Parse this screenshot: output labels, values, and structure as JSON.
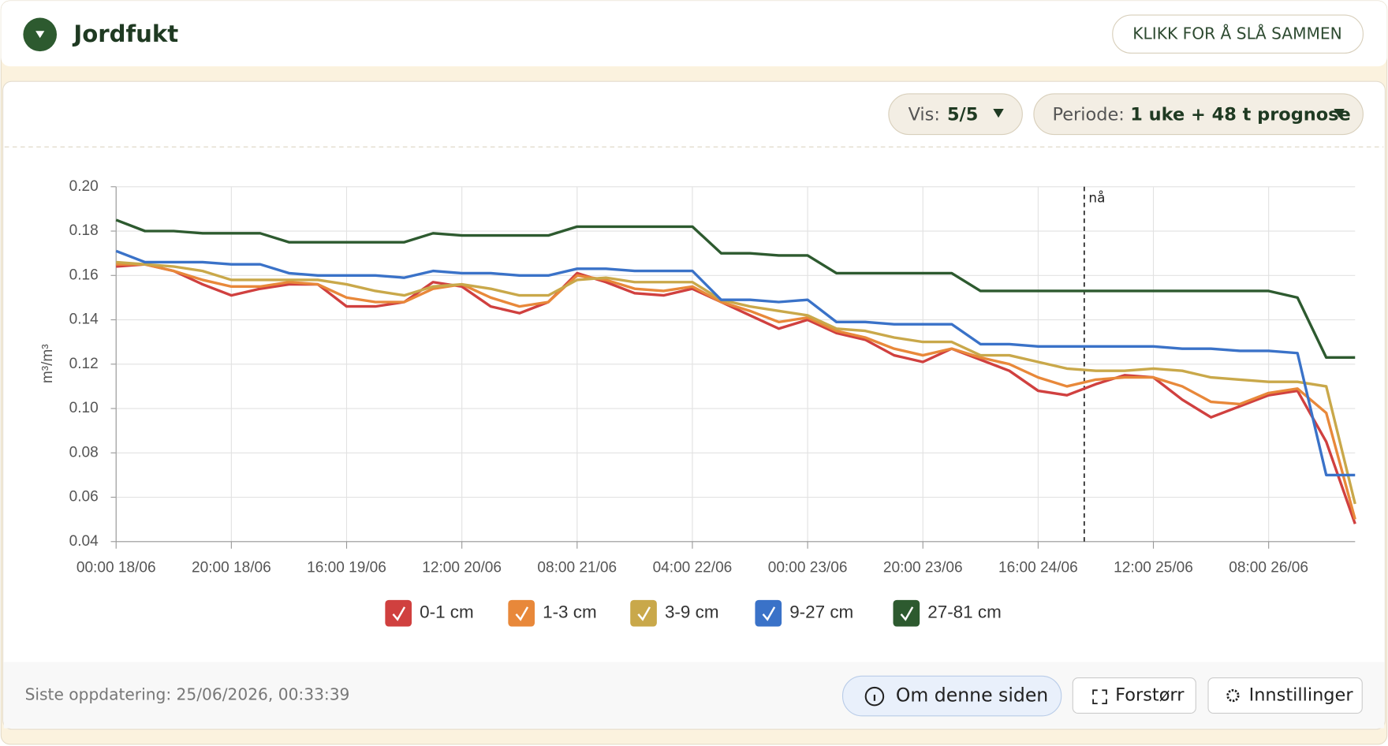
{
  "header": {
    "title": "Jordfukt",
    "collapse_button": "KLIKK FOR Å SLÅ SAMMEN"
  },
  "controls": {
    "show_label": "Vis:",
    "show_value": "5/5",
    "period_label": "Periode:",
    "period_value": "1 uke + 48 t prognose"
  },
  "chart_data": {
    "type": "line",
    "y_label": "m³/m³",
    "x": [
      "00:00 18/06",
      "05:00 18/06",
      "10:00 18/06",
      "15:00 18/06",
      "20:00 18/06",
      "01:00 19/06",
      "06:00 19/06",
      "11:00 19/06",
      "16:00 19/06",
      "21:00 19/06",
      "02:00 20/06",
      "07:00 20/06",
      "12:00 20/06",
      "17:00 20/06",
      "22:00 20/06",
      "03:00 21/06",
      "08:00 21/06",
      "13:00 21/06",
      "18:00 21/06",
      "23:00 21/06",
      "04:00 22/06",
      "09:00 22/06",
      "14:00 22/06",
      "19:00 22/06",
      "00:00 23/06",
      "05:00 23/06",
      "10:00 23/06",
      "15:00 23/06",
      "20:00 23/06",
      "01:00 24/06",
      "06:00 24/06",
      "11:00 24/06",
      "16:00 24/06",
      "21:00 24/06",
      "02:00 25/06",
      "07:00 25/06",
      "12:00 25/06",
      "17:00 25/06",
      "22:00 25/06",
      "03:00 26/06",
      "08:00 26/06",
      "13:00 26/06",
      "18:00 26/06",
      "23:00 26/06"
    ],
    "xlim": [
      "00:00 18/06",
      "23:00 26/06"
    ],
    "xticks": [
      "00:00 18/06",
      "20:00 18/06",
      "16:00 19/06",
      "12:00 20/06",
      "08:00 21/06",
      "04:00 22/06",
      "00:00 23/06",
      "20:00 23/06",
      "16:00 24/06",
      "12:00 25/06",
      "08:00 26/06"
    ],
    "ylim": [
      0.04,
      0.2
    ],
    "yticks": [
      0.04,
      0.06,
      0.08,
      {
        "value": 0.1,
        "label": "0.10"
      },
      0.12,
      0.14,
      0.16,
      0.18,
      {
        "value": 0.2,
        "label": "0.20"
      }
    ],
    "grid": true,
    "now_marker": {
      "x": "00:00 25/06",
      "label": "nå"
    },
    "series": [
      {
        "name": "0-1 cm",
        "color": "#d0403f",
        "values": [
          0.164,
          0.165,
          0.162,
          0.156,
          0.151,
          0.154,
          0.156,
          0.156,
          0.146,
          0.146,
          0.148,
          0.157,
          0.155,
          0.146,
          0.143,
          0.148,
          0.161,
          0.157,
          0.152,
          0.151,
          0.154,
          0.148,
          0.142,
          0.136,
          0.14,
          0.134,
          0.131,
          0.124,
          0.121,
          0.127,
          0.122,
          0.117,
          0.108,
          0.106,
          0.111,
          0.115,
          0.114,
          0.104,
          0.096,
          0.101,
          0.106,
          0.108,
          0.085,
          0.048
        ]
      },
      {
        "name": "1-3 cm",
        "color": "#e8883a",
        "values": [
          0.165,
          0.165,
          0.162,
          0.158,
          0.155,
          0.155,
          0.157,
          0.156,
          0.15,
          0.148,
          0.148,
          0.154,
          0.156,
          0.15,
          0.146,
          0.148,
          0.16,
          0.158,
          0.154,
          0.153,
          0.155,
          0.148,
          0.144,
          0.139,
          0.141,
          0.135,
          0.132,
          0.127,
          0.124,
          0.127,
          0.123,
          0.12,
          0.114,
          0.11,
          0.113,
          0.114,
          0.114,
          0.11,
          0.103,
          0.102,
          0.107,
          0.109,
          0.098,
          0.05
        ]
      },
      {
        "name": "3-9 cm",
        "color": "#c9a84a",
        "values": [
          0.166,
          0.165,
          0.164,
          0.162,
          0.158,
          0.158,
          0.158,
          0.158,
          0.156,
          0.153,
          0.151,
          0.155,
          0.156,
          0.154,
          0.151,
          0.151,
          0.158,
          0.159,
          0.157,
          0.157,
          0.157,
          0.149,
          0.146,
          0.144,
          0.142,
          0.136,
          0.135,
          0.132,
          0.13,
          0.13,
          0.124,
          0.124,
          0.121,
          0.118,
          0.117,
          0.117,
          0.118,
          0.117,
          0.114,
          0.113,
          0.112,
          0.112,
          0.11,
          0.057
        ]
      },
      {
        "name": "9-27 cm",
        "color": "#3a72c8",
        "values": [
          0.171,
          0.166,
          0.166,
          0.166,
          0.165,
          0.165,
          0.161,
          0.16,
          0.16,
          0.16,
          0.159,
          0.162,
          0.161,
          0.161,
          0.16,
          0.16,
          0.163,
          0.163,
          0.162,
          0.162,
          0.162,
          0.149,
          0.149,
          0.148,
          0.149,
          0.139,
          0.139,
          0.138,
          0.138,
          0.138,
          0.129,
          0.129,
          0.128,
          0.128,
          0.128,
          0.128,
          0.128,
          0.127,
          0.127,
          0.126,
          0.126,
          0.125,
          0.07,
          0.07
        ]
      },
      {
        "name": "27-81 cm",
        "color": "#2d5a2f",
        "values": [
          0.185,
          0.18,
          0.18,
          0.179,
          0.179,
          0.179,
          0.175,
          0.175,
          0.175,
          0.175,
          0.175,
          0.179,
          0.178,
          0.178,
          0.178,
          0.178,
          0.182,
          0.182,
          0.182,
          0.182,
          0.182,
          0.17,
          0.17,
          0.169,
          0.169,
          0.161,
          0.161,
          0.161,
          0.161,
          0.161,
          0.153,
          0.153,
          0.153,
          0.153,
          0.153,
          0.153,
          0.153,
          0.153,
          0.153,
          0.153,
          0.153,
          0.15,
          0.123,
          0.123
        ]
      }
    ]
  },
  "footer": {
    "last_update": "Siste oppdatering: 25/06/2026, 00:33:39",
    "about_button": "Om denne siden",
    "enlarge_button": "Forstørr",
    "settings_button": "Innstillinger"
  }
}
